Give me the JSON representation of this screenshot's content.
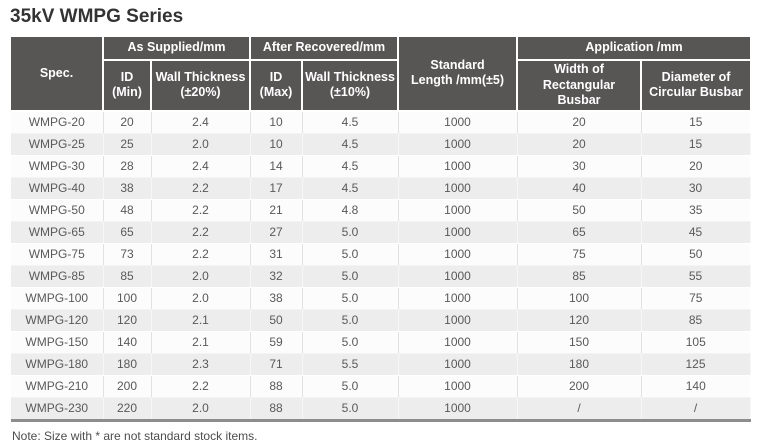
{
  "page": {
    "title": "35kV WMPG Series",
    "note": "Note: Size with * are not standard stock items."
  },
  "colors": {
    "header_bg": "#585555",
    "header_text": "#ffffff",
    "row_stripe": "#ededed",
    "table_bottom_border": "#8d8d8d",
    "body_text": "#595959",
    "title_text": "#333333"
  },
  "table": {
    "header": {
      "spec": "Spec.",
      "as_supplied": "As Supplied/mm",
      "after_recovered": "After Recovered/mm",
      "standard_length": {
        "l1": "Standard",
        "l2": "Length /mm(±5)"
      },
      "application": "Application /mm",
      "id_min": {
        "l1": "ID",
        "l2": "(Min)"
      },
      "wall_thickness_20": {
        "l1": "Wall Thickness",
        "l2": "(±20%)"
      },
      "id_max": {
        "l1": "ID",
        "l2": "(Max)"
      },
      "wall_thickness_10": {
        "l1": "Wall Thickness",
        "l2": "(±10%)"
      },
      "width_rectangular_busbar": {
        "l1": "Width of",
        "l2": "Rectangular Busbar"
      },
      "diameter_circular_busbar": {
        "l1": "Diameter of",
        "l2": "Circular Busbar"
      }
    },
    "column_keys": [
      "spec",
      "id-min",
      "wall-thickness-20",
      "id-max",
      "wall-thickness-10",
      "standard-length",
      "width-rectangular-busbar",
      "diameter-circular-busbar"
    ],
    "rows": [
      [
        "WMPG-20",
        "20",
        "2.4",
        "10",
        "4.5",
        "1000",
        "20",
        "15"
      ],
      [
        "WMPG-25",
        "25",
        "2.0",
        "10",
        "4.5",
        "1000",
        "20",
        "15"
      ],
      [
        "WMPG-30",
        "28",
        "2.4",
        "14",
        "4.5",
        "1000",
        "30",
        "20"
      ],
      [
        "WMPG-40",
        "38",
        "2.2",
        "17",
        "4.5",
        "1000",
        "40",
        "30"
      ],
      [
        "WMPG-50",
        "48",
        "2.2",
        "21",
        "4.8",
        "1000",
        "50",
        "35"
      ],
      [
        "WMPG-65",
        "65",
        "2.2",
        "27",
        "5.0",
        "1000",
        "65",
        "45"
      ],
      [
        "WMPG-75",
        "73",
        "2.2",
        "31",
        "5.0",
        "1000",
        "75",
        "50"
      ],
      [
        "WMPG-85",
        "85",
        "2.0",
        "32",
        "5.0",
        "1000",
        "85",
        "55"
      ],
      [
        "WMPG-100",
        "100",
        "2.0",
        "38",
        "5.0",
        "1000",
        "100",
        "75"
      ],
      [
        "WMPG-120",
        "120",
        "2.1",
        "50",
        "5.0",
        "1000",
        "120",
        "85"
      ],
      [
        "WMPG-150",
        "140",
        "2.1",
        "59",
        "5.0",
        "1000",
        "150",
        "105"
      ],
      [
        "WMPG-180",
        "180",
        "2.3",
        "71",
        "5.5",
        "1000",
        "180",
        "125"
      ],
      [
        "WMPG-210",
        "200",
        "2.2",
        "88",
        "5.0",
        "1000",
        "200",
        "140"
      ],
      [
        "WMPG-230",
        "220",
        "2.0",
        "88",
        "5.0",
        "1000",
        "/",
        "/"
      ]
    ]
  }
}
